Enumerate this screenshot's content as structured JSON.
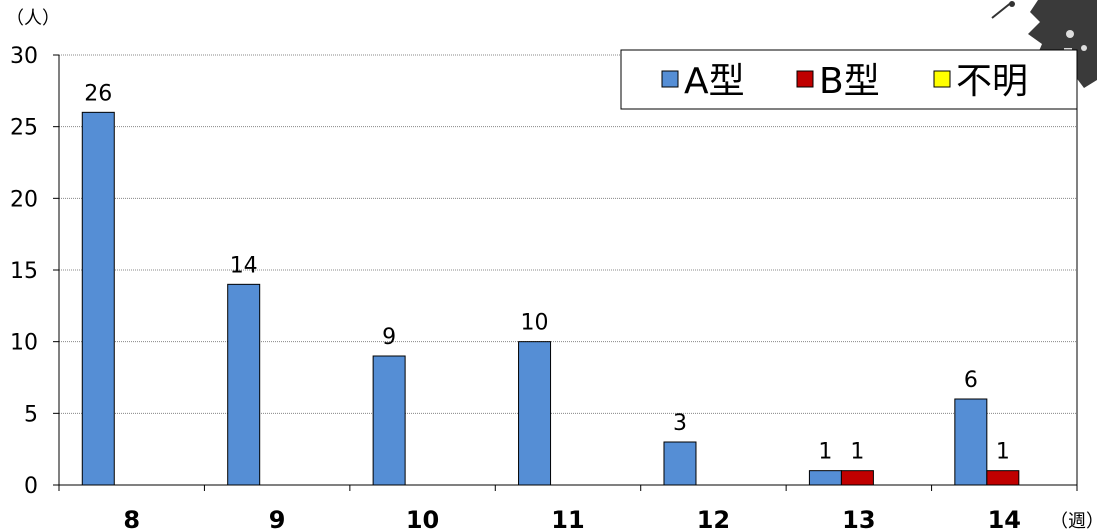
{
  "chart_data": {
    "type": "bar",
    "categories": [
      "8",
      "9",
      "10",
      "11",
      "12",
      "13",
      "14"
    ],
    "series": [
      {
        "name": "A型",
        "color": "#558ed5",
        "values": [
          26,
          14,
          9,
          10,
          3,
          1,
          6
        ]
      },
      {
        "name": "B型",
        "color": "#c00000",
        "values": [
          0,
          0,
          0,
          0,
          0,
          1,
          1
        ]
      },
      {
        "name": "不明",
        "color": "#ffff00",
        "values": [
          0,
          0,
          0,
          0,
          0,
          0,
          0
        ]
      }
    ],
    "data_labels": {
      "A型": [
        "26",
        "14",
        "9",
        "10",
        "3",
        "1",
        "6"
      ],
      "B型": [
        "",
        "",
        "",
        "",
        "",
        "1",
        "1"
      ]
    },
    "y_unit": "（人）",
    "x_unit": "（週）",
    "ylim": [
      0,
      30
    ],
    "yticks": [
      0,
      5,
      10,
      15,
      20,
      25,
      30
    ],
    "grid": true,
    "legend_position": "top-right"
  }
}
